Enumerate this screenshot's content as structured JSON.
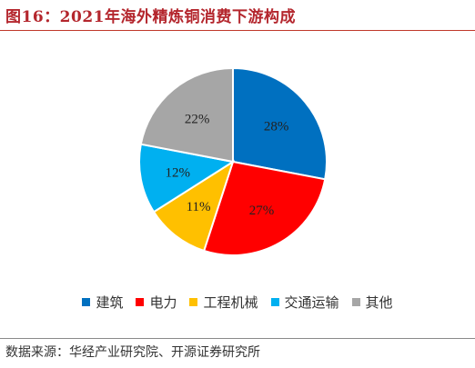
{
  "title": "图16：2021年海外精炼铜消费下游构成",
  "source": "数据来源：华经产业研究院、开源证券研究所",
  "chart_data": {
    "type": "pie",
    "title": "图16：2021年海外精炼铜消费下游构成",
    "unit": "%",
    "legend_position": "bottom",
    "categories": [
      "建筑",
      "电力",
      "工程机械",
      "交通运输",
      "其他"
    ],
    "values": [
      28,
      27,
      11,
      12,
      22
    ],
    "labels": [
      "28%",
      "27%",
      "11%",
      "12%",
      "22%"
    ],
    "colors": [
      "#0070C0",
      "#FF0000",
      "#FFC000",
      "#00B0F0",
      "#A6A6A6"
    ]
  }
}
